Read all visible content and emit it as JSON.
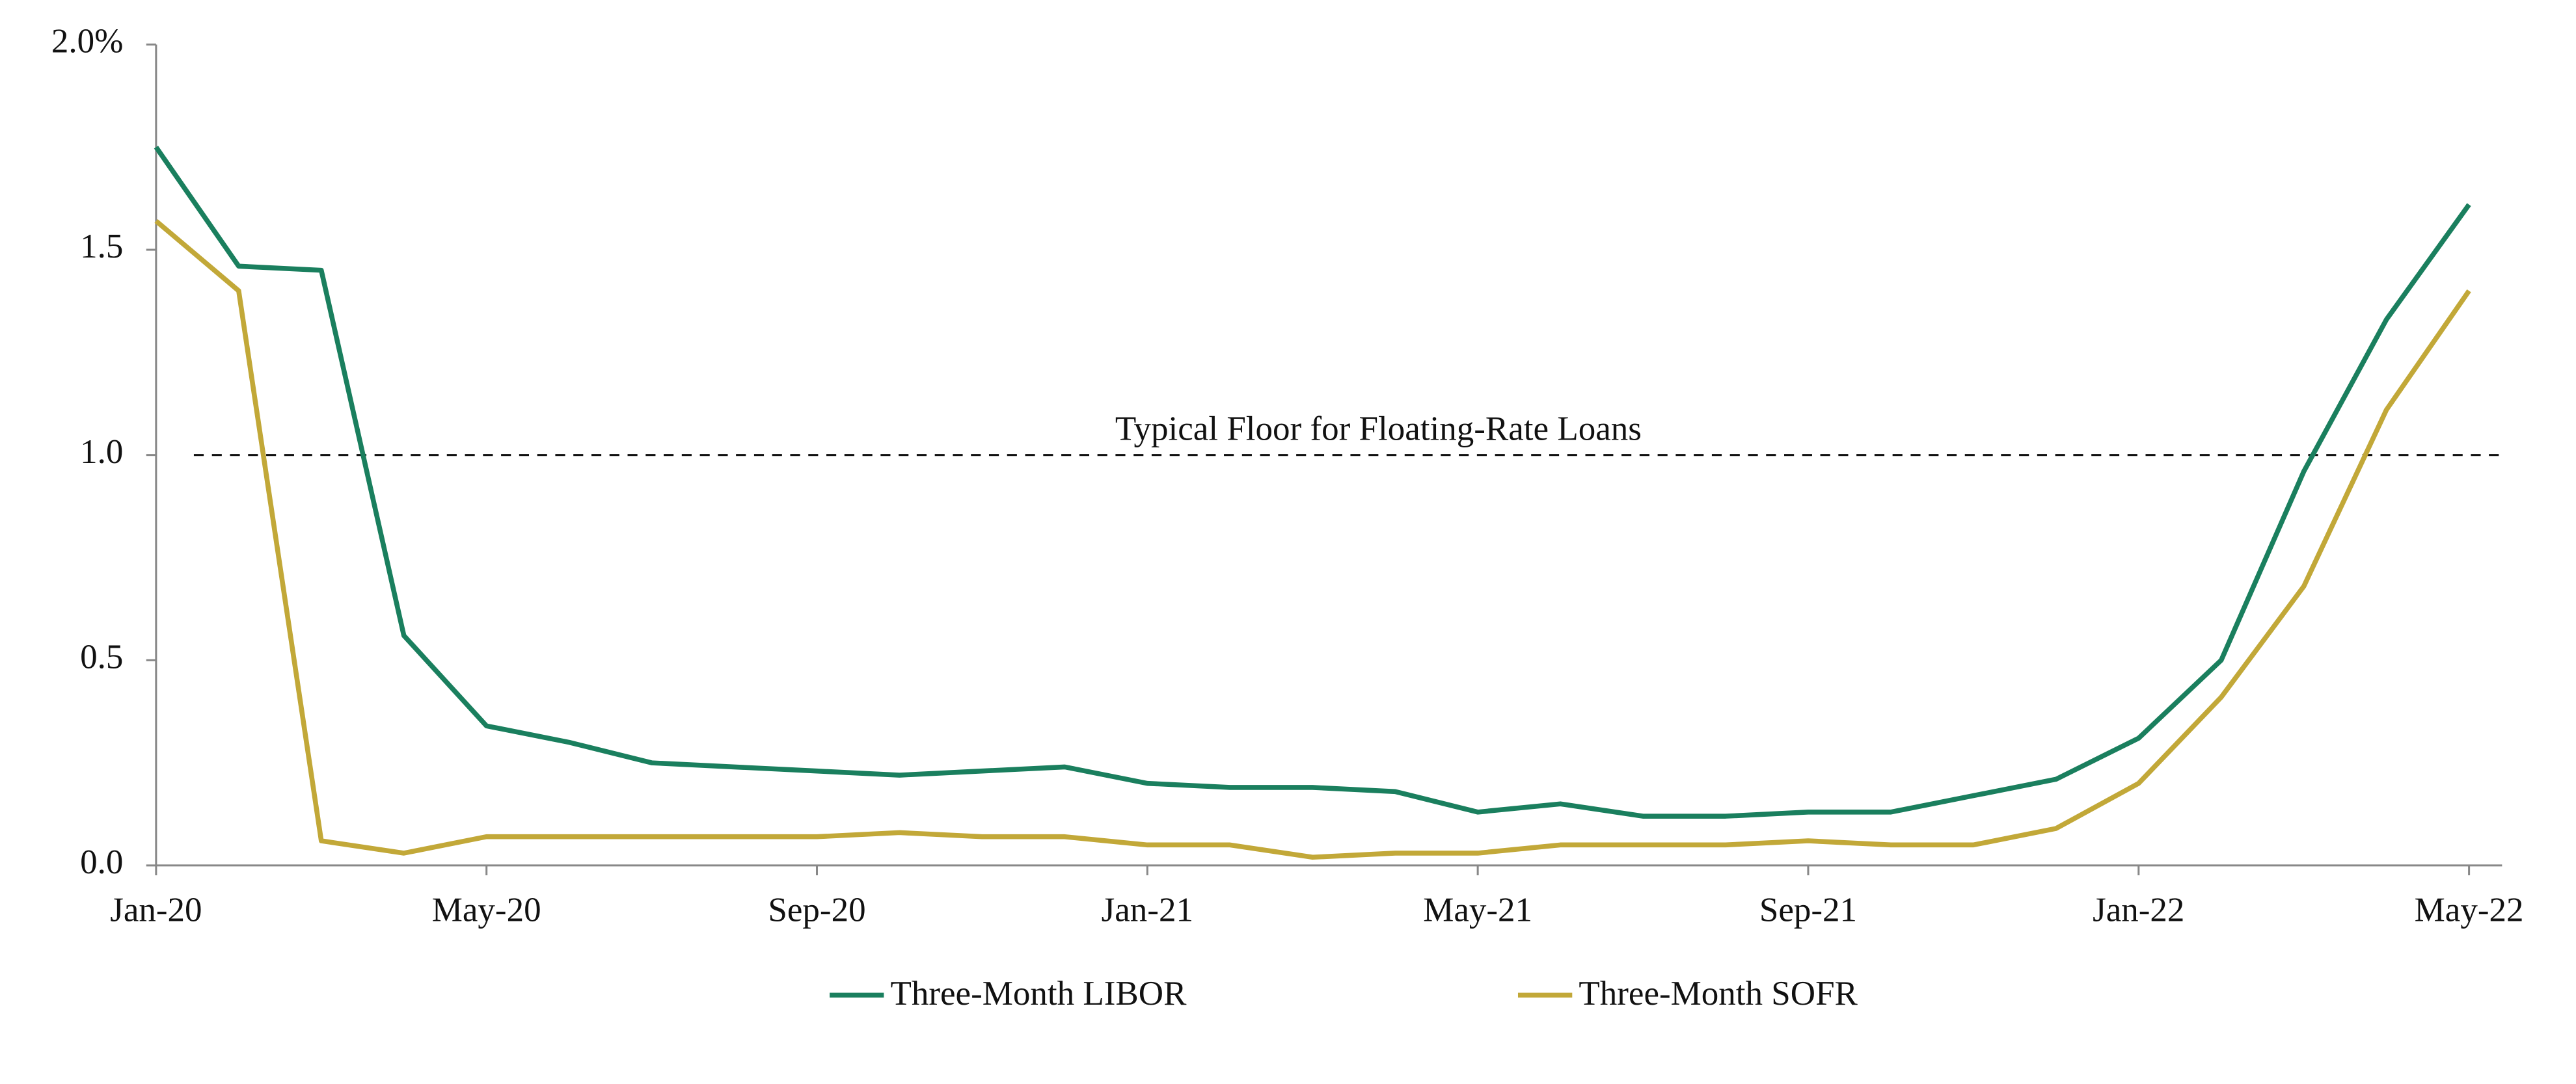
{
  "chart_data": {
    "type": "line",
    "x": [
      0,
      1,
      2,
      3,
      4,
      5,
      6,
      7,
      8,
      9,
      10,
      11,
      12,
      13,
      14,
      15,
      16,
      17,
      18,
      19,
      20,
      21,
      22,
      23,
      24,
      25,
      26,
      27,
      28
    ],
    "xlim": [
      0,
      28.4
    ],
    "xticks": [
      {
        "value": 0,
        "label": "Jan-20"
      },
      {
        "value": 4,
        "label": "May-20"
      },
      {
        "value": 8,
        "label": "Sep-20"
      },
      {
        "value": 12,
        "label": "Jan-21"
      },
      {
        "value": 16,
        "label": "May-21"
      },
      {
        "value": 20,
        "label": "Sep-21"
      },
      {
        "value": 24,
        "label": "Jan-22"
      },
      {
        "value": 28,
        "label": "May-22"
      }
    ],
    "ylim": [
      0,
      2
    ],
    "yticks": [
      {
        "value": 0,
        "label": "0.0"
      },
      0.5,
      {
        "value": 1,
        "label": "1.0"
      },
      1.5,
      {
        "value": 2,
        "label": "2.0%"
      }
    ],
    "series": [
      {
        "name": "Three-Month LIBOR",
        "color": "#1a7f5e",
        "values": [
          1.75,
          1.46,
          1.45,
          0.56,
          0.34,
          0.3,
          0.25,
          0.24,
          0.23,
          0.22,
          0.23,
          0.24,
          0.2,
          0.19,
          0.19,
          0.18,
          0.13,
          0.15,
          0.12,
          0.12,
          0.13,
          0.13,
          0.17,
          0.21,
          0.31,
          0.5,
          0.96,
          1.33,
          1.61
        ]
      },
      {
        "name": "Three-Month SOFR",
        "color": "#c2a838",
        "values": [
          1.57,
          1.4,
          0.06,
          0.03,
          0.07,
          0.07,
          0.07,
          0.07,
          0.07,
          0.08,
          0.07,
          0.07,
          0.05,
          0.05,
          0.02,
          0.03,
          0.03,
          0.05,
          0.05,
          0.05,
          0.06,
          0.05,
          0.05,
          0.09,
          0.2,
          0.41,
          0.68,
          1.11,
          1.4
        ]
      }
    ],
    "reference_line": {
      "value": 1,
      "label": "Typical Floor for Floating-Rate Loans"
    },
    "legend": "bottom"
  }
}
